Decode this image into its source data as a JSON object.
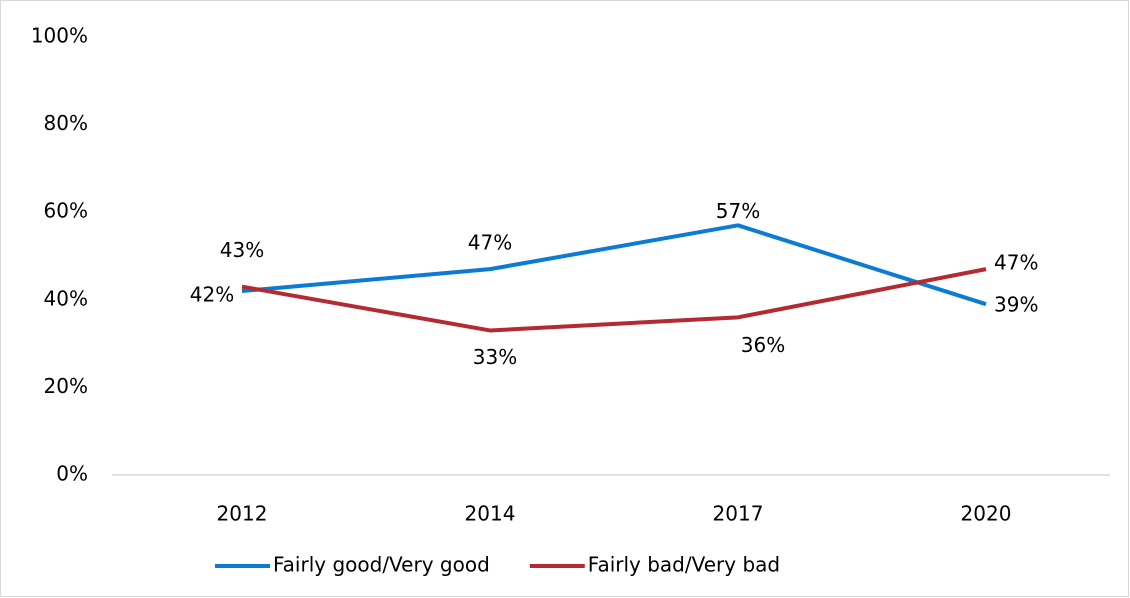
{
  "chart_data": {
    "type": "line",
    "categories": [
      "2012",
      "2014",
      "2017",
      "2020"
    ],
    "series": [
      {
        "name": "Fairly good/Very good",
        "color": "#0b7bd3",
        "values": [
          42,
          47,
          57,
          39
        ],
        "value_labels": [
          "42%",
          "47%",
          "57%",
          "39%"
        ]
      },
      {
        "name": "Fairly bad/Very bad",
        "color": "#b42a32",
        "values": [
          43,
          33,
          36,
          47
        ],
        "value_labels": [
          "43%",
          "33%",
          "36%",
          "47%"
        ]
      }
    ],
    "ylim": [
      0,
      100
    ],
    "yticks": [
      {
        "value": 0,
        "label": "0%"
      },
      {
        "value": 20,
        "label": "20%"
      },
      {
        "value": 40,
        "label": "40%"
      },
      {
        "value": 60,
        "label": "60%"
      },
      {
        "value": 80,
        "label": "80%"
      },
      {
        "value": 100,
        "label": "100%"
      }
    ],
    "grid": false,
    "legend": "bottom"
  }
}
